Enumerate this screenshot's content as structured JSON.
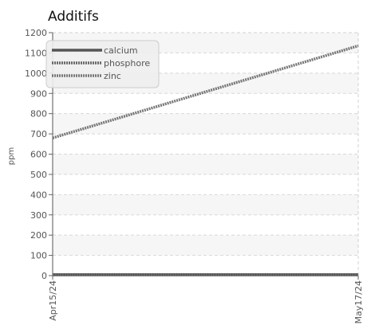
{
  "chart_data": {
    "type": "line",
    "title": "Additifs",
    "xlabel": "",
    "ylabel": "ppm",
    "x": [
      "Apr15/24",
      "May17/24"
    ],
    "ylim": [
      0,
      1200
    ],
    "yticks": [
      0,
      100,
      200,
      300,
      400,
      500,
      600,
      700,
      800,
      900,
      1000,
      1100,
      1200
    ],
    "grid": true,
    "legend_position": "top-left",
    "series": [
      {
        "name": "calcium",
        "values": [
          5,
          5
        ],
        "color": "#555555",
        "style": "solid"
      },
      {
        "name": "phosphore",
        "values": [
          5,
          5
        ],
        "color": "#666666",
        "style": "dotted"
      },
      {
        "name": "zinc",
        "values": [
          680,
          1135
        ],
        "color": "#777777",
        "style": "dotted"
      }
    ]
  }
}
